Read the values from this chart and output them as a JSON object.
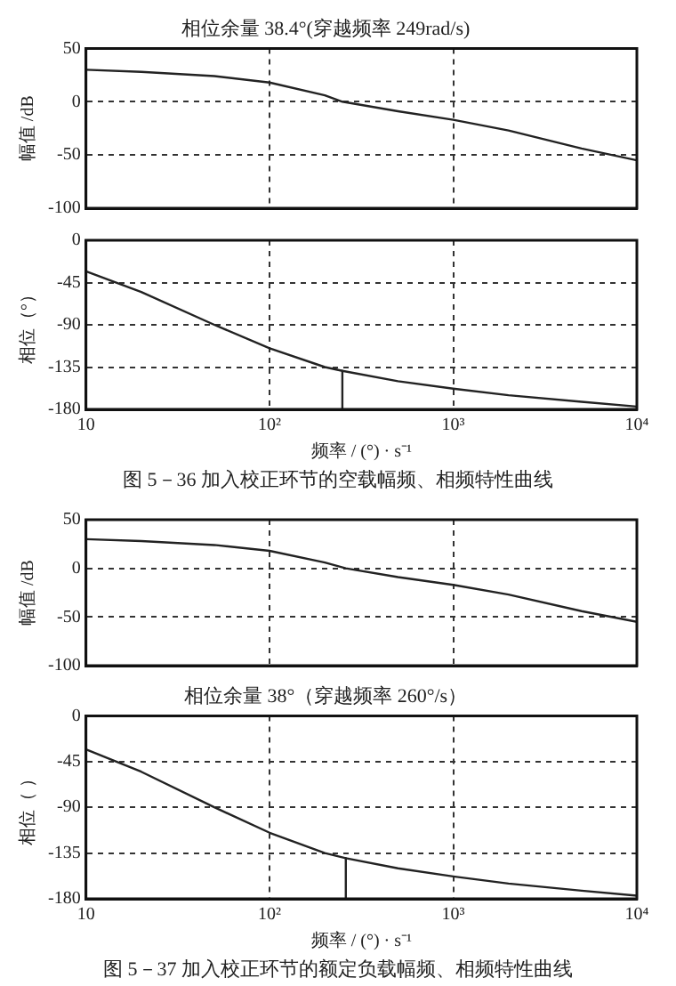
{
  "chart_data": [
    {
      "type": "line",
      "title": "相位余量 38.4°(穿越频率 249rad/s)",
      "ylabel": "幅值 /dB",
      "log": "x",
      "grid": true,
      "line_style": "solid",
      "marker": "none",
      "tick_labels": "y",
      "xlim": [
        10,
        10000
      ],
      "xticks": [
        {
          "value": 10,
          "label": null
        },
        {
          "value": 100,
          "label": null
        },
        {
          "value": 1000,
          "label": null
        },
        {
          "value": 10000,
          "label": null
        }
      ],
      "ylim": [
        -100,
        50
      ],
      "yticks": [
        -100,
        -50,
        0,
        50
      ],
      "series": [
        {
          "color": "#222222",
          "x": [
            10,
            20,
            50,
            100,
            200,
            249,
            500,
            1000,
            2000,
            5000,
            10000
          ],
          "values": [
            30,
            28,
            24,
            18,
            6,
            0,
            -9,
            -17,
            -27,
            -44,
            -55
          ]
        }
      ]
    },
    {
      "type": "line",
      "ylabel": "相位（°）",
      "xlabel": "频率 / (°) · s⁻¹",
      "annotations": [
        "图 5－36   加入校正环节的空载幅频、相频特性曲线"
      ],
      "log": "x",
      "grid": true,
      "line_style": "solid",
      "marker": "none",
      "xlim": [
        10,
        10000
      ],
      "xticks": [
        {
          "value": 10,
          "label": "10"
        },
        {
          "value": 100,
          "label": "10²"
        },
        {
          "value": 1000,
          "label": "10³"
        },
        {
          "value": 10000,
          "label": "10⁴"
        }
      ],
      "ylim": [
        -180,
        0
      ],
      "yticks": [
        -180,
        -135,
        -90,
        -45,
        0
      ],
      "series": [
        {
          "color": "#222222",
          "x": [
            10,
            20,
            50,
            100,
            200,
            249,
            500,
            1000,
            2000,
            5000,
            10000
          ],
          "values": [
            -33,
            -55,
            -90,
            -115,
            -135,
            -139,
            -150,
            -158,
            -165,
            -172,
            -177
          ]
        },
        {
          "color": "#222222",
          "x": [
            249,
            249
          ],
          "values": [
            -139,
            -180
          ]
        }
      ]
    },
    {
      "type": "line",
      "ylabel": "幅值 /dB",
      "log": "x",
      "grid": true,
      "line_style": "solid",
      "marker": "none",
      "tick_labels": "y",
      "xlim": [
        10,
        10000
      ],
      "xticks": [
        {
          "value": 10,
          "label": null
        },
        {
          "value": 100,
          "label": null
        },
        {
          "value": 1000,
          "label": null
        },
        {
          "value": 10000,
          "label": null
        }
      ],
      "ylim": [
        -100,
        50
      ],
      "yticks": [
        -100,
        -50,
        0,
        50
      ],
      "series": [
        {
          "color": "#222222",
          "x": [
            10,
            20,
            50,
            100,
            200,
            260,
            500,
            1000,
            2000,
            5000,
            10000
          ],
          "values": [
            30,
            28,
            24,
            18,
            6,
            0,
            -9,
            -17,
            -27,
            -44,
            -55
          ]
        }
      ]
    },
    {
      "type": "line",
      "title": "相位余量 38°（穿越频率 260°/s）",
      "ylabel": "相位（ ）",
      "xlabel": "频率 / (°) · s⁻¹",
      "annotations": [
        "图 5－37   加入校正环节的额定负载幅频、相频特性曲线"
      ],
      "log": "x",
      "grid": true,
      "line_style": "solid",
      "marker": "none",
      "xlim": [
        10,
        10000
      ],
      "xticks": [
        {
          "value": 10,
          "label": "10"
        },
        {
          "value": 100,
          "label": "10²"
        },
        {
          "value": 1000,
          "label": "10³"
        },
        {
          "value": 10000,
          "label": "10⁴"
        }
      ],
      "ylim": [
        -180,
        0
      ],
      "yticks": [
        -180,
        -135,
        -90,
        -45,
        0
      ],
      "series": [
        {
          "color": "#222222",
          "x": [
            10,
            20,
            50,
            100,
            200,
            260,
            500,
            1000,
            2000,
            5000,
            10000
          ],
          "values": [
            -33,
            -55,
            -90,
            -115,
            -135,
            -140,
            -150,
            -158,
            -165,
            -172,
            -177
          ]
        },
        {
          "color": "#222222",
          "x": [
            260,
            260
          ],
          "values": [
            -140,
            -180
          ]
        }
      ]
    }
  ]
}
